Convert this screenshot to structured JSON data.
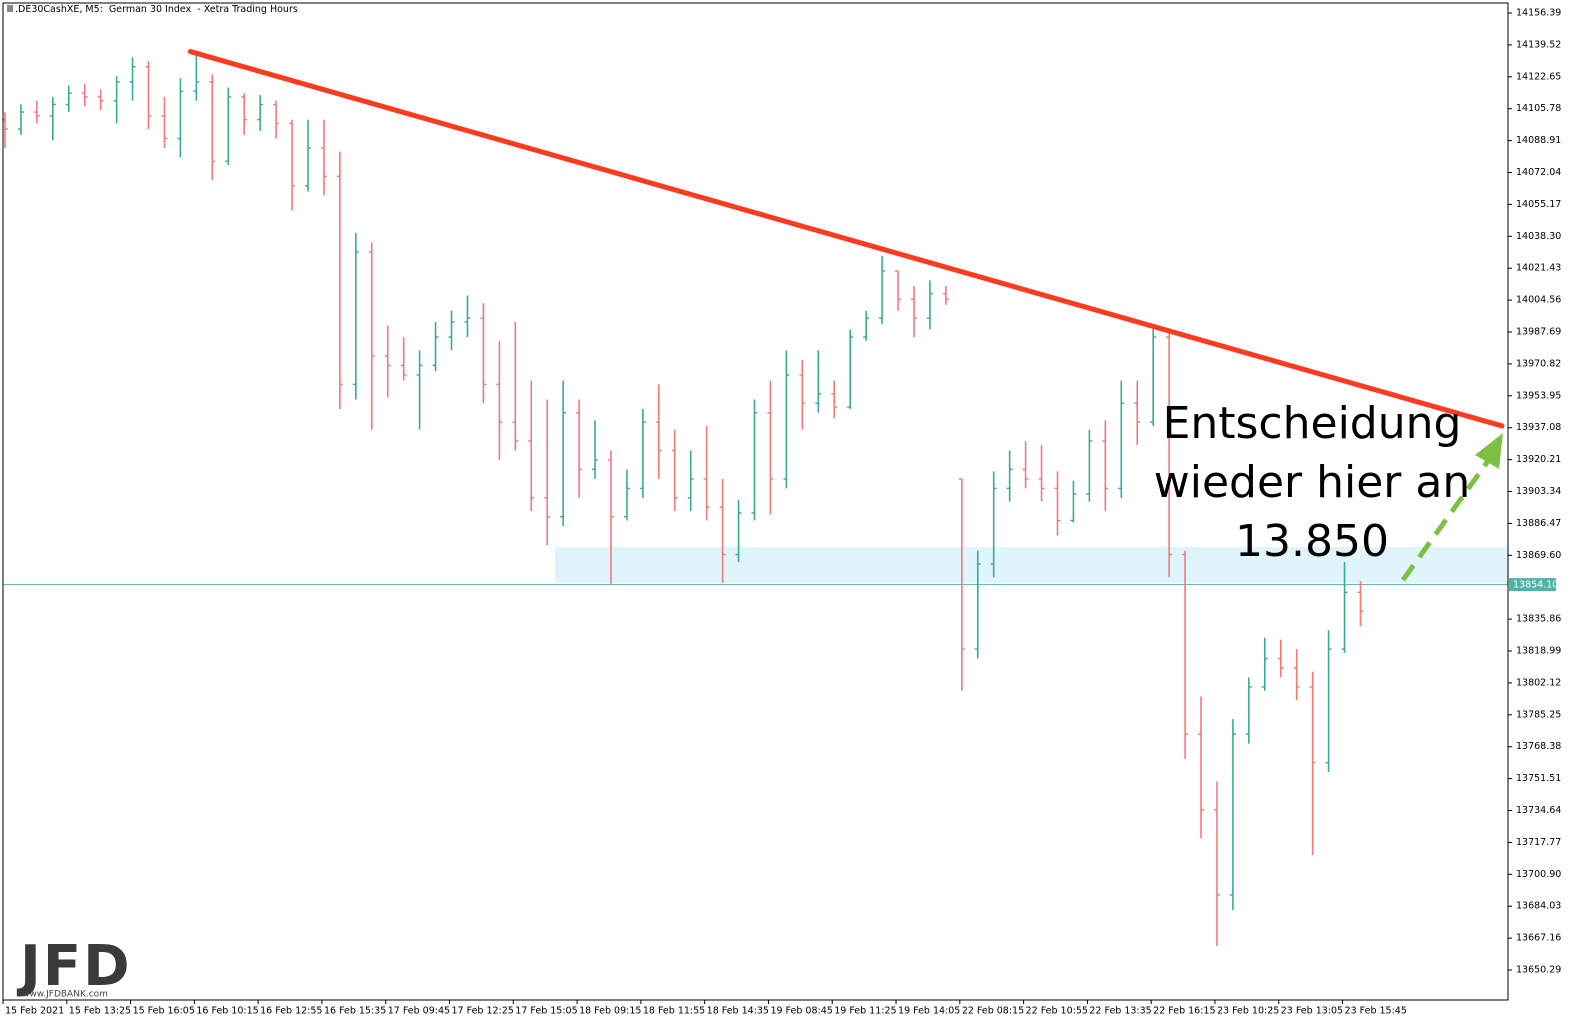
{
  "chart_data": {
    "type": "ohlc",
    "title": ".DE30CashXE, M5:  German 30 Index  - Xetra Trading Hours",
    "up_color": "#3aa99b",
    "down_color": "#f07a7a",
    "x": [
      1,
      9,
      17,
      25,
      33,
      41,
      49,
      57,
      65,
      73,
      81,
      89,
      97,
      105,
      113,
      121,
      129,
      137,
      145,
      153,
      161,
      169,
      177,
      185,
      193,
      201,
      209,
      217,
      225,
      233,
      241,
      249,
      257,
      265,
      273,
      281,
      289,
      297,
      305,
      313,
      321,
      329,
      337,
      345,
      353,
      361,
      369,
      377,
      385,
      393,
      401,
      409,
      417,
      425,
      433,
      441,
      449,
      457,
      465,
      473,
      481,
      489,
      497,
      505,
      513,
      521,
      529,
      537,
      545,
      553,
      561,
      569,
      577,
      585,
      593,
      601,
      609,
      617,
      625,
      633,
      641,
      649,
      657,
      665,
      673,
      681
    ],
    "open": [
      14100,
      14095,
      14104,
      14102,
      14108,
      14114,
      14112,
      14110,
      14120,
      14128,
      14102,
      14090,
      14115,
      14120,
      14078,
      14112,
      14100,
      14108,
      14098,
      14065,
      14085,
      14070,
      13960,
      14030,
      13975,
      13970,
      13965,
      13970,
      13985,
      13993,
      13995,
      13960,
      13940,
      13930,
      13900,
      13890,
      13945,
      13915,
      13920,
      13890,
      13905,
      13940,
      13925,
      13900,
      13910,
      13895,
      13870,
      13892,
      13945,
      13910,
      13965,
      13950,
      13955,
      13948,
      13985,
      13995,
      14020,
      14005,
      13995,
      14008,
      13910,
      13820,
      13865,
      13905,
      13915,
      13910,
      13905,
      13888,
      13902,
      13930,
      13905,
      13950,
      13940,
      13985,
      13870,
      13775,
      13735,
      13690,
      13775,
      13800,
      13815,
      13810,
      13800,
      13760,
      13820,
      13850
    ],
    "high": [
      14104,
      14108,
      14110,
      14112,
      14118,
      14119,
      14116,
      14123,
      14133,
      14131,
      14112,
      14122,
      14134,
      14124,
      14117,
      14114,
      14113,
      14110,
      14100,
      14100,
      14100,
      14083,
      14040,
      14035,
      13991,
      13985,
      13978,
      13993,
      13999,
      14007,
      14003,
      13983,
      13993,
      13962,
      13952,
      13962,
      13952,
      13941,
      13925,
      13915,
      13947,
      13960,
      13936,
      13925,
      13938,
      13910,
      13899,
      13952,
      13962,
      13978,
      13973,
      13978,
      13962,
      13989,
      13999,
      14028,
      14020,
      14012,
      14015,
      14012,
      13910,
      13872,
      13914,
      13925,
      13930,
      13928,
      13914,
      13909,
      13936,
      13941,
      13962,
      13962,
      13991,
      13988,
      13872,
      13795,
      13750,
      13783,
      13805,
      13826,
      13825,
      13820,
      13808,
      13830,
      13866,
      13856
    ],
    "low": [
      14085,
      14092,
      14098,
      14089,
      14104,
      14107,
      14105,
      14098,
      14110,
      14095,
      14085,
      14080,
      14110,
      14068,
      14076,
      14092,
      14094,
      14090,
      14052,
      14062,
      14060,
      13947,
      13952,
      13936,
      13953,
      13962,
      13936,
      13967,
      13978,
      13985,
      13950,
      13920,
      13925,
      13893,
      13875,
      13885,
      13900,
      13910,
      13854,
      13888,
      13900,
      13910,
      13893,
      13893,
      13888,
      13855,
      13866,
      13888,
      13891,
      13905,
      13936,
      13945,
      13942,
      13947,
      13983,
      13992,
      13999,
      13985,
      13989,
      14002,
      13798,
      13815,
      13858,
      13898,
      13905,
      13898,
      13880,
      13887,
      13898,
      13893,
      13900,
      13928,
      13938,
      13858,
      13762,
      13720,
      13663,
      13682,
      13770,
      13798,
      13805,
      13793,
      13711,
      13755,
      13818,
      13832
    ],
    "close": [
      14095,
      14104,
      14102,
      14108,
      14114,
      14112,
      14110,
      14120,
      14128,
      14102,
      14090,
      14115,
      14120,
      14078,
      14112,
      14100,
      14108,
      14098,
      14065,
      14085,
      14070,
      13960,
      14030,
      13975,
      13970,
      13965,
      13970,
      13985,
      13993,
      13995,
      13960,
      13940,
      13930,
      13900,
      13890,
      13945,
      13915,
      13920,
      13890,
      13905,
      13940,
      13925,
      13900,
      13910,
      13895,
      13870,
      13892,
      13945,
      13910,
      13965,
      13950,
      13955,
      13948,
      13985,
      13995,
      14020,
      14005,
      13995,
      14008,
      14005,
      13820,
      13865,
      13905,
      13915,
      13910,
      13905,
      13888,
      13902,
      13930,
      13905,
      13950,
      13940,
      13985,
      13870,
      13775,
      13735,
      13690,
      13775,
      13800,
      13815,
      13810,
      13800,
      13760,
      13820,
      13850,
      13840
    ],
    "xlim": [
      0,
      755
    ],
    "ylim": [
      13634.43,
      14161.68
    ],
    "xticks": [
      {
        "value": 0,
        "label": "15 Feb 2021"
      },
      {
        "value": 32,
        "label": "15 Feb 13:25"
      },
      {
        "value": 64,
        "label": "15 Feb 16:05"
      },
      {
        "value": 96,
        "label": "16 Feb 10:15"
      },
      {
        "value": 128,
        "label": "16 Feb 12:55"
      },
      {
        "value": 160,
        "label": "16 Feb 15:35"
      },
      {
        "value": 192,
        "label": "17 Feb 09:45"
      },
      {
        "value": 224,
        "label": "17 Feb 12:25"
      },
      {
        "value": 256,
        "label": "17 Feb 15:05"
      },
      {
        "value": 288,
        "label": "18 Feb 09:15"
      },
      {
        "value": 320,
        "label": "18 Feb 11:55"
      },
      {
        "value": 352,
        "label": "18 Feb 14:35"
      },
      {
        "value": 384,
        "label": "19 Feb 08:45"
      },
      {
        "value": 416,
        "label": "19 Feb 11:25"
      },
      {
        "value": 448,
        "label": "19 Feb 14:05"
      },
      {
        "value": 480,
        "label": "22 Feb 08:15"
      },
      {
        "value": 512,
        "label": "22 Feb 10:55"
      },
      {
        "value": 544,
        "label": "22 Feb 13:35"
      },
      {
        "value": 576,
        "label": "22 Feb 16:15"
      },
      {
        "value": 608,
        "label": "23 Feb 10:25"
      },
      {
        "value": 640,
        "label": "23 Feb 13:05"
      },
      {
        "value": 672,
        "label": "23 Feb 15:45"
      }
    ],
    "yticks": [
      14156.39,
      14139.52,
      14122.65,
      14105.78,
      14088.91,
      14072.04,
      14055.17,
      {
        "value": 14038.3,
        "label": "14038.30"
      },
      14021.43,
      14004.56,
      13987.69,
      13970.82,
      13953.95,
      13937.08,
      13920.21,
      13903.34,
      13886.47,
      {
        "value": 13869.6,
        "label": "13869.60"
      },
      13835.86,
      13818.99,
      13802.12,
      13785.25,
      13768.38,
      13751.51,
      13734.64,
      13717.77,
      {
        "value": 13700.9,
        "label": "13700.90"
      },
      13684.03,
      13667.16,
      13650.29
    ],
    "last_price": {
      "value": 13854.1,
      "label": "13854.10",
      "color": "#4fb3a6"
    },
    "trendline": {
      "x": [
        94,
        752
      ],
      "y": [
        14136,
        13938
      ],
      "color": "#ff3b1f"
    },
    "zone": {
      "x": [
        277,
        755
      ],
      "y": [
        13855,
        13874
      ],
      "color": "#dff5fb"
    },
    "annotation": [
      "Entscheidung",
      "wieder hier an",
      "13.850"
    ],
    "logo": {
      "brand": "JFD",
      "url": "www.JFDBANK.com"
    }
  }
}
